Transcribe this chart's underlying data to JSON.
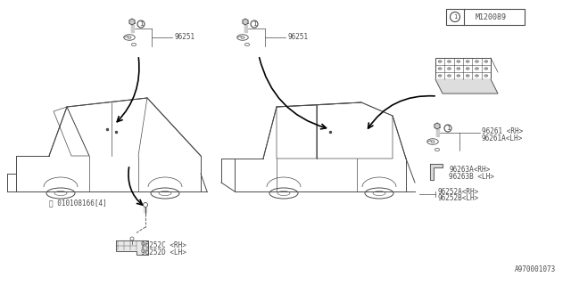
{
  "bg_color": "#ffffff",
  "line_color": "#4a4a4a",
  "border_color": "#666666",
  "part_number_box": "M120089",
  "part_number_circle": "1",
  "bottom_label": "A970001073",
  "labels": {
    "96251_left": "96251",
    "96251_right": "96251",
    "96252C": "96252C <RH>",
    "96252D": "96252D <LH>",
    "96261": "96261 <RH>",
    "96261A": "96261A<LH>",
    "96263A": "96263A<RH>",
    "96263B": "96263B <LH>",
    "96252A": "96252A<RH>",
    "96252B": "96252B<LH>"
  },
  "bolt_circle_label": "Ⓑ 010108166[4]"
}
